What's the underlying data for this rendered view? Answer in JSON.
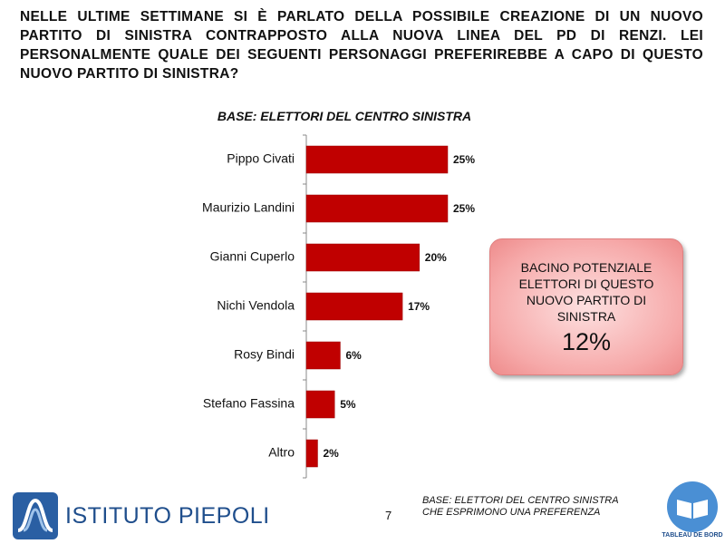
{
  "chart_data": {
    "type": "bar",
    "title": "NELLE ULTIME SETTIMANE SI È PARLATO DELLA POSSIBILE CREAZIONE DI UN NUOVO PARTITO DI SINISTRA CONTRAPPOSTO ALLA NUOVA LINEA DEL PD DI RENZI. LEI PERSONALMENTE QUALE DEI SEGUENTI PERSONAGGI PREFERIREBBE A CAPO DI QUESTO NUOVO PARTITO DI SINISTRA?",
    "subtitle": "BASE: ELETTORI DEL CENTRO SINISTRA",
    "categories": [
      "Pippo Civati",
      "Maurizio Landini",
      "Gianni Cuperlo",
      "Nichi Vendola",
      "Rosy Bindi",
      "Stefano Fassina",
      "Altro"
    ],
    "values": [
      25,
      25,
      20,
      17,
      6,
      5,
      2
    ],
    "value_labels": [
      "25%",
      "25%",
      "20%",
      "17%",
      "6%",
      "5%",
      "2%"
    ],
    "color": "#c00000"
  },
  "callout": {
    "text": "BACINO POTENZIALE ELETTORI DI QUESTO NUOVO PARTITO DI SINISTRA",
    "value": "12%"
  },
  "footer": {
    "note": [
      "BASE: ELETTORI DEL CENTRO SINISTRA",
      "CHE ESPRIMONO UNA PREFERENZA"
    ],
    "page_number": "7",
    "logo": "ISTITUTO PIEPOLI",
    "badge": "TABLEAU DE BORD"
  }
}
